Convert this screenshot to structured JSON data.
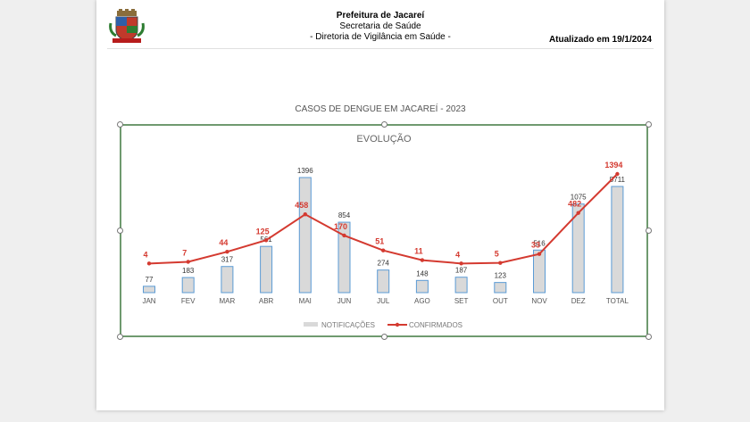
{
  "header": {
    "org": "Prefeitura de Jacareí",
    "dept": "Secretaria de Saúde",
    "division": "- Diretoria de Vigilância em Saúde -",
    "updated": "Atualizado em 19/1/2024"
  },
  "chart_outer_title": "CASOS DE DENGUE EM JACAREÍ - 2023",
  "colors": {
    "bar_fill": "#d9d9d9",
    "bar_stroke": "#5b9bd5",
    "line": "#d43a30",
    "frame": "#6f9a6f"
  },
  "chart_data": {
    "type": "bar",
    "title": "EVOLUÇÃO",
    "categories": [
      "JAN",
      "FEV",
      "MAR",
      "ABR",
      "MAI",
      "JUN",
      "JUL",
      "AGO",
      "SET",
      "OUT",
      "NOV",
      "DEZ",
      "TOTAL"
    ],
    "series": [
      {
        "name": "NOTIFICAÇÕES",
        "type": "bar",
        "values": [
          77,
          183,
          317,
          561,
          1396,
          854,
          274,
          148,
          187,
          123,
          516,
          1075,
          5711
        ]
      },
      {
        "name": "CONFIRMADOS",
        "type": "line",
        "values": [
          4,
          7,
          44,
          125,
          458,
          170,
          51,
          11,
          4,
          5,
          33,
          482,
          1394
        ]
      }
    ],
    "legend": "bottom",
    "grid": false
  }
}
